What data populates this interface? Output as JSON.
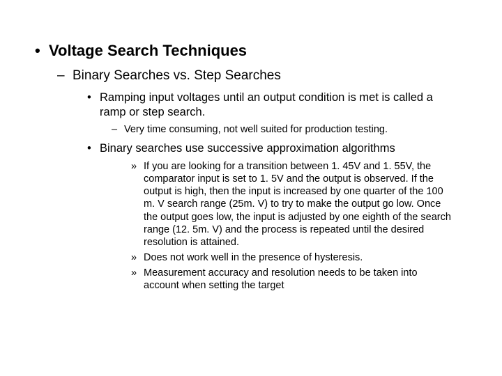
{
  "slide": {
    "l1": "Voltage Search Techniques",
    "l2": "Binary Searches vs. Step Searches",
    "l3a": "Ramping input voltages until an output condition is met is called a ramp or step search.",
    "l4a": "Very time consuming, not well suited for production testing.",
    "l3b": "Binary searches use successive approximation algorithms",
    "l5a": "If you are looking for a transition between 1. 45V and 1. 55V, the comparator input is set to 1. 5V and the output is observed. If the output is high, then the input is increased by one quarter of the 100 m. V search range (25m. V) to try to make the output go low.  Once the output goes low, the input is adjusted by one eighth of the search range (12. 5m. V) and the process is repeated until the desired resolution is attained.",
    "l5b": "Does not work well in the presence of hysteresis.",
    "l5c": "Measurement accuracy and resolution needs to be taken into account when setting the target"
  },
  "style": {
    "background": "#ffffff",
    "text_color": "#000000",
    "font_family": "Arial",
    "l1_fontsize": 22,
    "l1_weight": "bold",
    "l2_fontsize": 19,
    "l3_fontsize": 16.5,
    "l4_fontsize": 14.5,
    "l5_fontsize": 14.5
  }
}
